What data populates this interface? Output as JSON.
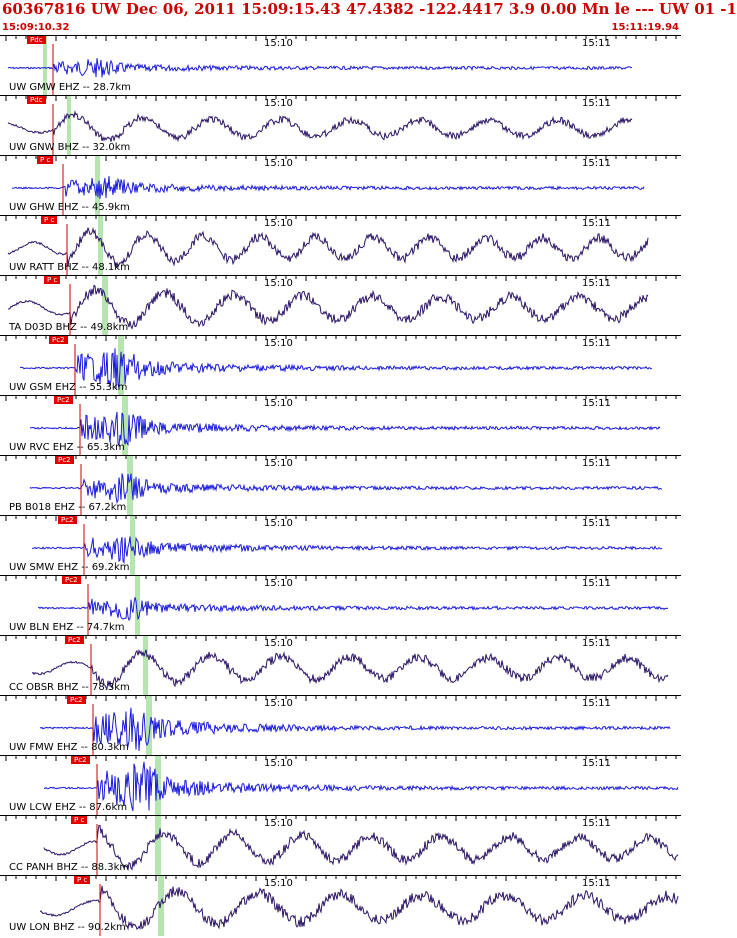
{
  "header": {
    "title": "60367816 UW Dec 06, 2011 15:09:15.43   47.4382 -122.4417  3.9 0.00 Mn le --- UW 01  -1",
    "time_start": "15:09:10.32",
    "time_end": "15:11:19.94"
  },
  "colors": {
    "header_text": "#cc0000",
    "trace_ehz": "#1a1adc",
    "trace_bhz": "#2a1466",
    "pick_flag": "#e00000",
    "pick_line": "#cc0000",
    "window_band": "#b5e6b0"
  },
  "tick_labels": [
    "15:10",
    "15:11"
  ],
  "stations": [
    {
      "label": "UW GMW EHZ -- 28.7km",
      "pick": "Pdc",
      "type": "EHZ"
    },
    {
      "label": "UW GNW BHZ -- 32.0km",
      "pick": "Pdc",
      "type": "BHZ"
    },
    {
      "label": "UW GHW EHZ -- 45.9km",
      "pick": "P c",
      "type": "EHZ"
    },
    {
      "label": "UW RATT BHZ -- 48.1km",
      "pick": "P c",
      "type": "BHZ"
    },
    {
      "label": "TA D03D BHZ -- 49.8km",
      "pick": "P c",
      "type": "BHZ"
    },
    {
      "label": "UW GSM EHZ -- 55.3km",
      "pick": "Pc2",
      "type": "EHZ"
    },
    {
      "label": "UW RVC EHZ -- 65.3km",
      "pick": "Pc2",
      "type": "EHZ"
    },
    {
      "label": "PB B018 EHZ -- 67.2km",
      "pick": "Pc2",
      "type": "EHZ"
    },
    {
      "label": "UW SMW EHZ -- 69.2km",
      "pick": "Pc2",
      "type": "EHZ"
    },
    {
      "label": "UW BLN EHZ -- 74.7km",
      "pick": "Pc2",
      "type": "EHZ"
    },
    {
      "label": "CC OBSR BHZ -- 78.3km",
      "pick": "Pc2",
      "type": "BHZ"
    },
    {
      "label": "UW FMW EHZ -- 80.3km",
      "pick": "Pc2",
      "type": "EHZ"
    },
    {
      "label": "UW LCW EHZ -- 87.6km",
      "pick": "Pc2",
      "type": "EHZ"
    },
    {
      "label": "CC PANH BHZ -- 88.3km",
      "pick": "P c",
      "type": "BHZ"
    },
    {
      "label": "UW LON BHZ -- 90.2km",
      "pick": "P c",
      "type": "BHZ"
    }
  ]
}
